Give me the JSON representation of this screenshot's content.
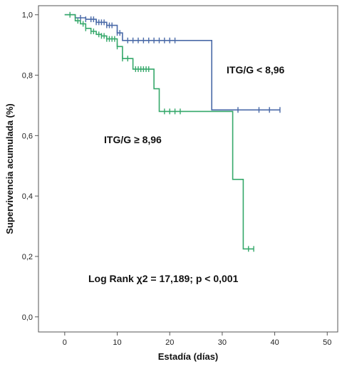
{
  "chart_data": {
    "type": "line",
    "subtype": "kaplan-meier",
    "title": "",
    "xlabel": "Estadía (días)",
    "ylabel": "Supervivencia acumulada (%)",
    "xlim": [
      -5,
      52
    ],
    "ylim": [
      -0.05,
      1.03
    ],
    "x_ticks": [
      0,
      10,
      20,
      30,
      40,
      50
    ],
    "x_tick_labels": [
      "0",
      "10",
      "20",
      "30",
      "40",
      "50"
    ],
    "y_ticks": [
      0.0,
      0.2,
      0.4,
      0.6,
      0.8,
      1.0
    ],
    "y_tick_labels": [
      "0,0",
      "0,2",
      "0,4",
      "0,6",
      "0,8",
      "1,0"
    ],
    "grid": false,
    "series": [
      {
        "name": "ITG/G < 8,96",
        "color": "#4a6aa8",
        "steps": [
          [
            0,
            1.0
          ],
          [
            2,
            0.99
          ],
          [
            4,
            0.985
          ],
          [
            6,
            0.975
          ],
          [
            8,
            0.965
          ],
          [
            10,
            0.94
          ],
          [
            11,
            0.915
          ],
          [
            28,
            0.915
          ],
          [
            28,
            0.685
          ],
          [
            41,
            0.685
          ]
        ],
        "censored_x": [
          3,
          4,
          5,
          5.5,
          6,
          6.5,
          7,
          7.5,
          8,
          8.5,
          9,
          10,
          10.5,
          12,
          13,
          14,
          15,
          16,
          17,
          18,
          19,
          20,
          21,
          33,
          37,
          39,
          41
        ]
      },
      {
        "name": "ITG/G ≥ 8,96",
        "color": "#35a86a",
        "steps": [
          [
            0,
            1.0
          ],
          [
            2,
            0.98
          ],
          [
            3,
            0.97
          ],
          [
            4,
            0.955
          ],
          [
            5,
            0.945
          ],
          [
            6,
            0.935
          ],
          [
            7,
            0.93
          ],
          [
            8,
            0.92
          ],
          [
            10,
            0.895
          ],
          [
            11,
            0.855
          ],
          [
            13,
            0.82
          ],
          [
            17,
            0.755
          ],
          [
            18,
            0.68
          ],
          [
            32,
            0.68
          ],
          [
            32,
            0.455
          ],
          [
            34,
            0.455
          ],
          [
            34,
            0.225
          ],
          [
            36,
            0.225
          ]
        ],
        "censored_x": [
          1,
          2.5,
          3.5,
          4,
          5,
          5.5,
          6.5,
          7,
          7.5,
          8,
          8.5,
          9,
          9.5,
          10,
          11,
          12,
          13.5,
          14,
          14.5,
          15,
          15.5,
          16,
          19,
          20,
          21,
          22,
          35,
          36
        ]
      }
    ],
    "annotations": [
      {
        "text": "ITG/G < 8,96",
        "near": "upper-right, above blue curve"
      },
      {
        "text": "ITG/G ≥ 8,96",
        "near": "middle-left, below green curve"
      },
      {
        "text": "Log Rank χ2 = 17,189; p < 0,001",
        "near": "lower-center"
      }
    ]
  }
}
